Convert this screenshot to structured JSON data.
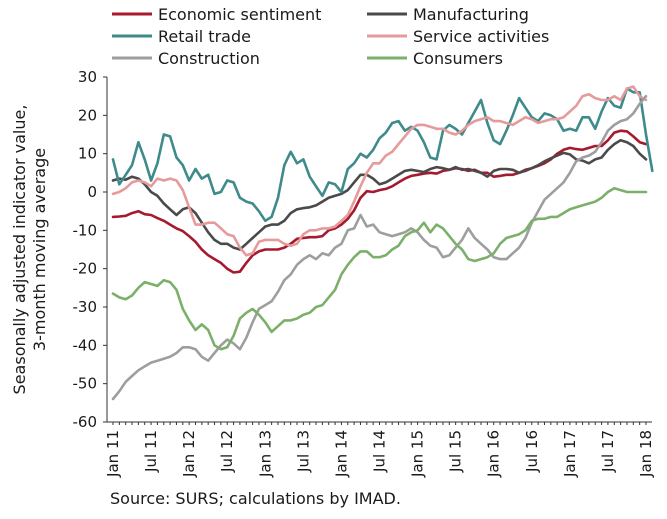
{
  "chart_data": {
    "type": "line",
    "ylabel_lines": [
      "Seasonally adjusted indicator value,",
      "3-month moving average"
    ],
    "ylim": [
      -60,
      30
    ],
    "yticks": [
      30,
      20,
      10,
      0,
      -10,
      -20,
      -30,
      -40,
      -50,
      -60
    ],
    "x_start": "2011-01",
    "x_end": "2018-06",
    "x_tick_labels": [
      "Jan 11",
      "Jul 11",
      "Jan 12",
      "Jul 12",
      "Jan 13",
      "Jul 13",
      "Jan 14",
      "Jul 14",
      "Jan 15",
      "Jul 15",
      "Jan 16",
      "Jul 16",
      "Jan 17",
      "Jul 17",
      "Jan 18"
    ],
    "grid": false,
    "legend": "top",
    "series": [
      {
        "name": "Economic sentiment",
        "color": "#a6192e",
        "values": [
          -6.5,
          -6.4,
          -6.2,
          -5.5,
          -5,
          -5.8,
          -6,
          -6.8,
          -7.5,
          -8.5,
          -9.5,
          -10.2,
          -11.5,
          -13,
          -15,
          -16.5,
          -17.5,
          -18.5,
          -20,
          -21,
          -20.8,
          -18.5,
          -16.5,
          -15.5,
          -15,
          -15,
          -15,
          -14.5,
          -13.5,
          -12.2,
          -12,
          -11.8,
          -11.8,
          -11.5,
          -10,
          -9.5,
          -8.5,
          -7,
          -4.8,
          -1.5,
          0.2,
          0,
          0.5,
          0.8,
          1.5,
          2.5,
          3.5,
          4.2,
          4.5,
          4.8,
          5,
          4.8,
          5.5,
          5.8,
          6.2,
          6,
          5.5,
          5.8,
          5,
          5,
          4,
          4.2,
          4.5,
          4.5,
          5,
          5.8,
          6.2,
          6.8,
          7.5,
          8.5,
          10,
          11,
          11.5,
          11.2,
          11,
          11.5,
          12,
          12,
          13.5,
          15.5,
          16,
          15.8,
          14.5,
          13,
          12.5
        ]
      },
      {
        "name": "Manufacturing",
        "color": "#4a4a4a",
        "values": [
          3,
          3.5,
          3.2,
          4,
          3.5,
          2,
          0,
          -1,
          -3,
          -4.5,
          -6,
          -4.5,
          -4,
          -5.5,
          -8,
          -10.5,
          -12.5,
          -13.5,
          -13.5,
          -14.5,
          -15,
          -13.5,
          -12,
          -10.5,
          -9,
          -8.5,
          -8.5,
          -7.5,
          -5.5,
          -4.5,
          -4.2,
          -4,
          -3.5,
          -2.5,
          -1.5,
          -1,
          -0.5,
          0.5,
          2.5,
          4.5,
          4.5,
          3.5,
          2,
          2.5,
          3.5,
          4.5,
          5.5,
          5.8,
          5.5,
          5.2,
          6,
          6.5,
          6.2,
          5.8,
          6.5,
          5.8,
          6,
          5.5,
          5,
          4,
          5.5,
          6,
          6,
          5.8,
          5,
          5.5,
          6.2,
          7,
          8,
          8.8,
          9.5,
          10.2,
          9.8,
          8.5,
          8.2,
          7.5,
          8.5,
          9,
          11,
          12.5,
          13.5,
          13,
          12,
          10,
          8.5
        ]
      },
      {
        "name": "Retail trade",
        "color": "#3f8a8a",
        "values": [
          8.5,
          2,
          4.5,
          7,
          13,
          8.5,
          3,
          7.5,
          15,
          14.5,
          9,
          7,
          3,
          6,
          3.5,
          4.5,
          -0.5,
          0,
          3,
          2.5,
          -1.5,
          -2.5,
          -3,
          -5,
          -7.5,
          -6.5,
          -1.5,
          7,
          10.5,
          7.5,
          8.5,
          4,
          1.5,
          -1,
          2.5,
          2,
          0,
          6,
          7.5,
          10,
          9,
          11,
          14,
          15.5,
          18,
          18.5,
          16,
          17,
          16,
          13,
          9,
          8.5,
          16,
          17.5,
          16.5,
          15,
          18,
          21,
          24,
          18,
          13.5,
          12.5,
          16,
          20,
          24.5,
          22,
          19.5,
          18.5,
          20.5,
          20,
          19,
          16,
          16.5,
          16,
          19.5,
          19.5,
          16.5,
          21,
          24.5,
          22.5,
          22,
          27,
          26,
          26,
          15,
          5.5
        ]
      },
      {
        "name": "Service activities",
        "color": "#e59b9b",
        "values": [
          -0.5,
          0,
          1,
          2.5,
          3,
          2.5,
          1.5,
          3.5,
          3,
          3.5,
          3,
          0.5,
          -4,
          -8.5,
          -8.5,
          -8,
          -8,
          -9.5,
          -11,
          -11.5,
          -14.5,
          -16.5,
          -16,
          -13,
          -12.5,
          -12.5,
          -12.5,
          -13.5,
          -14,
          -13.5,
          -11,
          -10,
          -10,
          -9.5,
          -9.5,
          -9,
          -7.5,
          -6,
          -2.5,
          1.5,
          5,
          7.5,
          7.5,
          9.5,
          10.5,
          12.5,
          14.5,
          16.5,
          17.5,
          17.5,
          17,
          16.5,
          16.5,
          15.5,
          15,
          16,
          17.5,
          18.5,
          19,
          19.5,
          18.5,
          18.5,
          18,
          17.5,
          18.5,
          19.5,
          19,
          18,
          18.5,
          19,
          19,
          19.5,
          21,
          22.5,
          25,
          25.5,
          24.5,
          24,
          24,
          25,
          24,
          27,
          27.5,
          25,
          24
        ]
      },
      {
        "name": "Construction",
        "color": "#9e9e9e",
        "values": [
          -54,
          -52,
          -49.5,
          -48,
          -46.5,
          -45.5,
          -44.5,
          -44,
          -43.5,
          -43,
          -42,
          -40.5,
          -40.5,
          -41,
          -43,
          -44,
          -42,
          -40,
          -38.5,
          -39.5,
          -41,
          -38,
          -34,
          -30.5,
          -29.5,
          -28.5,
          -26,
          -23,
          -21.5,
          -19,
          -17.5,
          -16.5,
          -17.5,
          -16,
          -16.5,
          -14.5,
          -13.5,
          -10,
          -9.5,
          -6,
          -9,
          -8.5,
          -10.5,
          -11,
          -11.5,
          -11,
          -10.5,
          -9.5,
          -10.5,
          -12.5,
          -14,
          -14.5,
          -17,
          -16.5,
          -14.5,
          -12.5,
          -9.5,
          -12,
          -13.5,
          -15,
          -17,
          -17.5,
          -17.5,
          -16,
          -14.5,
          -12,
          -8,
          -5,
          -2,
          -0.5,
          1,
          2.5,
          5,
          8,
          9,
          9.5,
          10.5,
          13,
          16,
          17.5,
          18.5,
          19,
          20.5,
          23,
          25
        ]
      },
      {
        "name": "Consumers",
        "color": "#7cb06a",
        "values": [
          -26.5,
          -27.5,
          -28,
          -27,
          -25,
          -23.5,
          -24,
          -24.5,
          -23,
          -23.5,
          -25.5,
          -30.5,
          -33.5,
          -36,
          -34.5,
          -36,
          -40,
          -41,
          -40.5,
          -37.5,
          -33,
          -31.5,
          -30.5,
          -32,
          -34,
          -36.5,
          -35,
          -33.5,
          -33.5,
          -33,
          -32,
          -31.5,
          -30,
          -29.5,
          -27.5,
          -25.5,
          -21.5,
          -19,
          -17,
          -15.5,
          -15.5,
          -17,
          -17,
          -16.5,
          -15,
          -14,
          -11.5,
          -10.5,
          -10,
          -8,
          -10.5,
          -8.5,
          -9.5,
          -11.5,
          -13.5,
          -15,
          -17.5,
          -18,
          -17.5,
          -17,
          -16,
          -13.5,
          -12,
          -11.5,
          -11,
          -10,
          -7.5,
          -7,
          -7,
          -6.5,
          -6.5,
          -5.5,
          -4.5,
          -4,
          -3.5,
          -3,
          -2.5,
          -1.5,
          0,
          1,
          0.5,
          0,
          0,
          0,
          0
        ]
      }
    ]
  },
  "footer": {
    "source": "Source: SURS; calculations by IMAD."
  }
}
